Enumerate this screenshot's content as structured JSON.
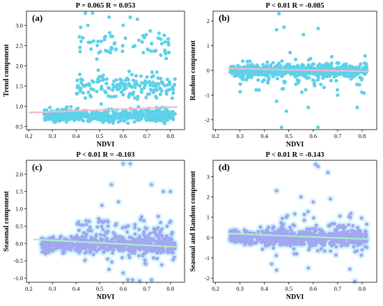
{
  "chart_data": [
    {
      "type": "scatter",
      "panel_label": "(a)",
      "title": "P = 0.065 R = 0.053",
      "xlabel": "NDVI",
      "ylabel": "Trend component",
      "xlim": [
        0.19,
        0.86
      ],
      "ylim": [
        0.42,
        3.35
      ],
      "xticks": [
        0.2,
        0.3,
        0.4,
        0.5,
        0.6,
        0.7,
        0.8
      ],
      "yticks": [
        0.5,
        1.0,
        1.5,
        2.0,
        2.5,
        3.0
      ],
      "point_color": "#5ed1e8",
      "trend_color": "#f6b7c9",
      "trend": {
        "x": [
          0.2,
          0.83
        ],
        "y": [
          0.84,
          0.98
        ]
      },
      "clusters": [
        {
          "n": 520,
          "x": [
            0.26,
            0.82
          ],
          "y": [
            0.55,
            1.0
          ]
        },
        {
          "n": 170,
          "x": [
            0.4,
            0.82
          ],
          "y": [
            1.0,
            2.0
          ]
        },
        {
          "n": 60,
          "x": [
            0.41,
            0.8
          ],
          "y": [
            2.0,
            3.0
          ]
        },
        {
          "n": 40,
          "x": [
            0.28,
            0.42
          ],
          "y": [
            0.55,
            0.92
          ]
        }
      ],
      "points": [
        [
          0.44,
          3.3
        ],
        [
          0.47,
          3.3
        ],
        [
          0.54,
          3.2
        ],
        [
          0.63,
          3.2
        ],
        [
          0.66,
          3.15
        ],
        [
          0.42,
          2.95
        ],
        [
          0.45,
          3.0
        ],
        [
          0.6,
          3.0
        ],
        [
          0.69,
          2.7
        ],
        [
          0.72,
          2.55
        ],
        [
          0.49,
          2.5
        ],
        [
          0.55,
          2.45
        ],
        [
          0.78,
          2.3
        ]
      ]
    },
    {
      "type": "scatter",
      "panel_label": "(b)",
      "title": "P < 0.01 R = -0.085",
      "xlabel": "NDVI",
      "ylabel": "Random component",
      "xlim": [
        0.19,
        0.86
      ],
      "ylim": [
        -2.4,
        2.4
      ],
      "xticks": [
        0.2,
        0.3,
        0.4,
        0.5,
        0.6,
        0.7,
        0.8
      ],
      "yticks": [
        -2,
        -1,
        0,
        1,
        2
      ],
      "point_color": "#5ed1e8",
      "trend_color": "#f6b7c9",
      "trend": {
        "x": [
          0.25,
          0.83
        ],
        "y": [
          0.08,
          -0.04
        ]
      },
      "clusters": [
        {
          "n": 650,
          "x": [
            0.26,
            0.82
          ],
          "y": [
            -0.35,
            0.35
          ]
        },
        {
          "n": 120,
          "x": [
            0.3,
            0.82
          ],
          "y": [
            -1.1,
            0.9
          ]
        }
      ],
      "points": [
        [
          0.46,
          2.3
        ],
        [
          0.48,
          1.75
        ],
        [
          0.45,
          1.65
        ],
        [
          0.62,
          1.7
        ],
        [
          0.56,
          1.45
        ],
        [
          0.47,
          -2.3
        ],
        [
          0.62,
          -2.3
        ],
        [
          0.49,
          -1.65
        ],
        [
          0.45,
          -1.25
        ],
        [
          0.58,
          -1.5
        ],
        [
          0.78,
          -1.5
        ],
        [
          0.7,
          -1.0
        ]
      ]
    },
    {
      "type": "scatter",
      "panel_label": "(c)",
      "title": "P < 0.01 R = -0.103",
      "xlabel": "NDVI",
      "ylabel": "Seasonal component",
      "xlim": [
        0.19,
        0.86
      ],
      "ylim": [
        -1.12,
        2.4
      ],
      "xticks": [
        0.2,
        0.3,
        0.4,
        0.5,
        0.6,
        0.7,
        0.8
      ],
      "yticks": [
        -1.0,
        -0.5,
        0.0,
        0.5,
        1.0,
        1.5,
        2.0
      ],
      "point_color": "#a2a7f0",
      "halo_color": "#bff0fb",
      "trend_color": "#a8f0c8",
      "trend": {
        "x": [
          0.22,
          0.83
        ],
        "y": [
          0.12,
          -0.1
        ]
      },
      "clusters": [
        {
          "n": 560,
          "x": [
            0.25,
            0.82
          ],
          "y": [
            -0.35,
            0.3
          ]
        },
        {
          "n": 190,
          "x": [
            0.4,
            0.82
          ],
          "y": [
            -0.85,
            1.0
          ]
        }
      ],
      "points": [
        [
          0.6,
          2.3
        ],
        [
          0.63,
          2.3
        ],
        [
          0.55,
          1.7
        ],
        [
          0.72,
          1.7
        ],
        [
          0.8,
          1.5
        ],
        [
          0.77,
          1.5
        ],
        [
          0.58,
          1.2
        ],
        [
          0.51,
          1.1
        ],
        [
          0.54,
          -0.75
        ],
        [
          0.6,
          -0.85
        ],
        [
          0.62,
          -1.05
        ],
        [
          0.64,
          -1.05
        ],
        [
          0.67,
          -1.08
        ],
        [
          0.72,
          -1.05
        ]
      ]
    },
    {
      "type": "scatter",
      "panel_label": "(d)",
      "title": "P < 0.01 R = -0.143",
      "xlabel": "NDVI",
      "ylabel": "Seasonal and Random component",
      "xlim": [
        0.19,
        0.86
      ],
      "ylim": [
        -2.2,
        3.8
      ],
      "xticks": [
        0.2,
        0.3,
        0.4,
        0.5,
        0.6,
        0.7,
        0.8
      ],
      "yticks": [
        -2,
        -1,
        0,
        1,
        2,
        3
      ],
      "point_color": "#a2a7f0",
      "halo_color": "#bff0fb",
      "trend_color": "#a8f0c8",
      "trend": {
        "x": [
          0.25,
          0.83
        ],
        "y": [
          0.2,
          -0.08
        ]
      },
      "clusters": [
        {
          "n": 600,
          "x": [
            0.26,
            0.82
          ],
          "y": [
            -0.55,
            0.55
          ]
        },
        {
          "n": 180,
          "x": [
            0.38,
            0.82
          ],
          "y": [
            -1.3,
            1.5
          ]
        }
      ],
      "points": [
        [
          0.61,
          3.6
        ],
        [
          0.62,
          3.5
        ],
        [
          0.66,
          3.2
        ],
        [
          0.45,
          2.3
        ],
        [
          0.55,
          2.0
        ],
        [
          0.67,
          1.9
        ],
        [
          0.6,
          1.75
        ],
        [
          0.45,
          -1.6
        ],
        [
          0.43,
          -1.3
        ],
        [
          0.58,
          -1.5
        ],
        [
          0.75,
          -1.55
        ],
        [
          0.77,
          -2.15
        ]
      ]
    }
  ]
}
